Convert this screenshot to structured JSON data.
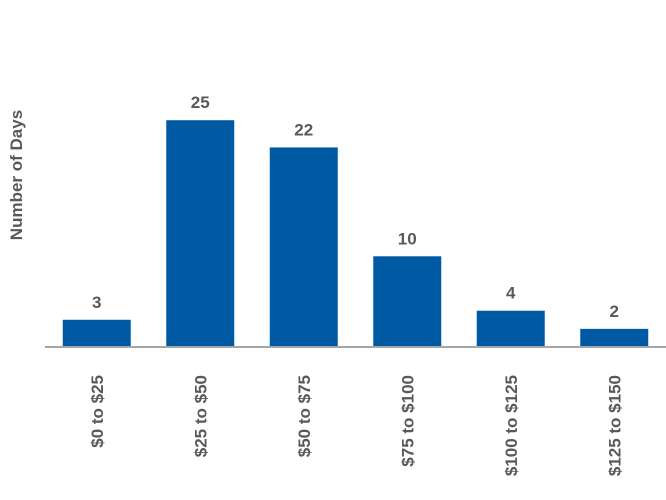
{
  "chart_data": {
    "type": "bar",
    "y_label": "Number of Days",
    "categories": [
      "$0 to $25",
      "$25 to $50",
      "$50 to $75",
      "$75 to $100",
      "$100 to $125",
      "$125 to $150"
    ],
    "values": [
      3,
      25,
      22,
      10,
      4,
      2
    ],
    "color": "#0059a3",
    "ylim": [
      0,
      28
    ]
  }
}
